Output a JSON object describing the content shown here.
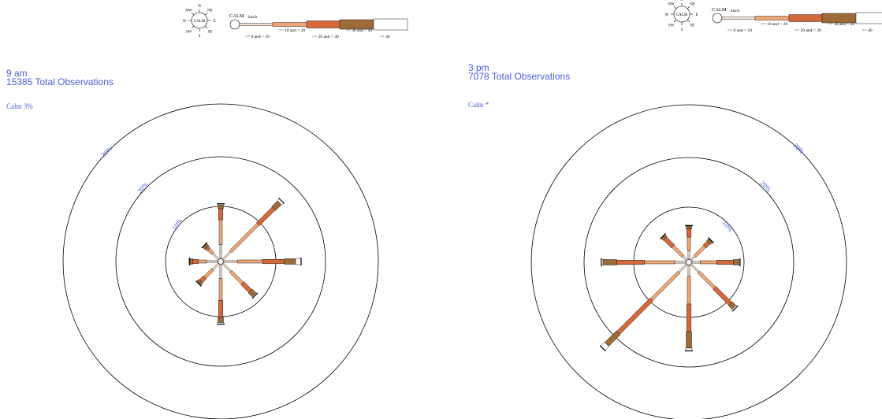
{
  "legend": {
    "calm_label": "CALM",
    "unit_label": "km/h",
    "compass": {
      "center": "CALM",
      "n": "N",
      "ne": "NE",
      "e": "E",
      "se": "SE",
      "s": "S",
      "sw": "SW",
      "w": "W",
      "nw": "NW"
    },
    "bins": [
      {
        "label": ">= 0 and < 10",
        "color": "#f5e2cf"
      },
      {
        "label": ">= 10 and < 20",
        "color": "#f0a774"
      },
      {
        "label": ">= 20 and < 30",
        "color": "#d4693c"
      },
      {
        "label": ">= 30 and < 40",
        "color": "#9c6b38"
      },
      {
        "label": ">= 40",
        "color": "#ffffff"
      }
    ]
  },
  "chart_data": [
    {
      "type": "windrose",
      "title_time": "9 am",
      "title_obs": "15385 Total Observations",
      "calm_text": "Calm 3%",
      "ring_labels": [
        "10%",
        "20%",
        "30%"
      ],
      "rings": [
        10,
        20,
        30
      ],
      "directions": [
        "N",
        "NE",
        "E",
        "SE",
        "S",
        "SW",
        "W",
        "NW"
      ],
      "bins": [
        ">= 0 and < 10",
        ">= 10 and < 20",
        ">= 20 and < 30",
        ">= 30 and < 40",
        ">= 40"
      ],
      "values": {
        "N": [
          2.5,
          4.5,
          2.0,
          0.7,
          0.2
        ],
        "NE": [
          2.0,
          7.0,
          4.0,
          1.5,
          0.5
        ],
        "E": [
          2.5,
          4.5,
          4.0,
          2.0,
          1.0
        ],
        "SE": [
          2.0,
          3.0,
          2.0,
          1.0,
          0.2
        ],
        "S": [
          2.5,
          4.0,
          3.0,
          1.0,
          0.3
        ],
        "SW": [
          1.5,
          2.0,
          1.0,
          0.5,
          0.1
        ],
        "W": [
          2.0,
          1.5,
          1.0,
          0.5,
          0.1
        ],
        "NW": [
          1.5,
          1.0,
          0.5,
          0.5,
          0.1
        ]
      }
    },
    {
      "type": "windrose",
      "title_time": "3 pm",
      "title_obs": "7078 Total Observations",
      "calm_text": "Calm *",
      "ring_labels": [
        "10%",
        "20%",
        "30%"
      ],
      "rings": [
        10,
        20,
        30
      ],
      "directions": [
        "N",
        "NE",
        "E",
        "SE",
        "S",
        "SW",
        "W",
        "NW"
      ],
      "bins": [
        ">= 0 and < 10",
        ">= 10 and < 20",
        ">= 20 and < 30",
        ">= 30 and < 40",
        ">= 40"
      ],
      "values": {
        "N": [
          1.5,
          2.5,
          1.5,
          0.5,
          0.1
        ],
        "NE": [
          1.0,
          2.5,
          1.0,
          0.5,
          0.1
        ],
        "E": [
          1.5,
          3.0,
          3.0,
          1.0,
          0.2
        ],
        "SE": [
          2.0,
          4.0,
          4.0,
          1.0,
          0.3
        ],
        "S": [
          2.0,
          5.0,
          5.0,
          3.0,
          0.5
        ],
        "SW": [
          2.0,
          7.0,
          8.5,
          3.0,
          1.0
        ],
        "W": [
          2.0,
          5.5,
          5.0,
          2.5,
          0.3
        ],
        "NW": [
          1.0,
          2.5,
          2.0,
          0.5,
          0.1
        ]
      }
    }
  ]
}
